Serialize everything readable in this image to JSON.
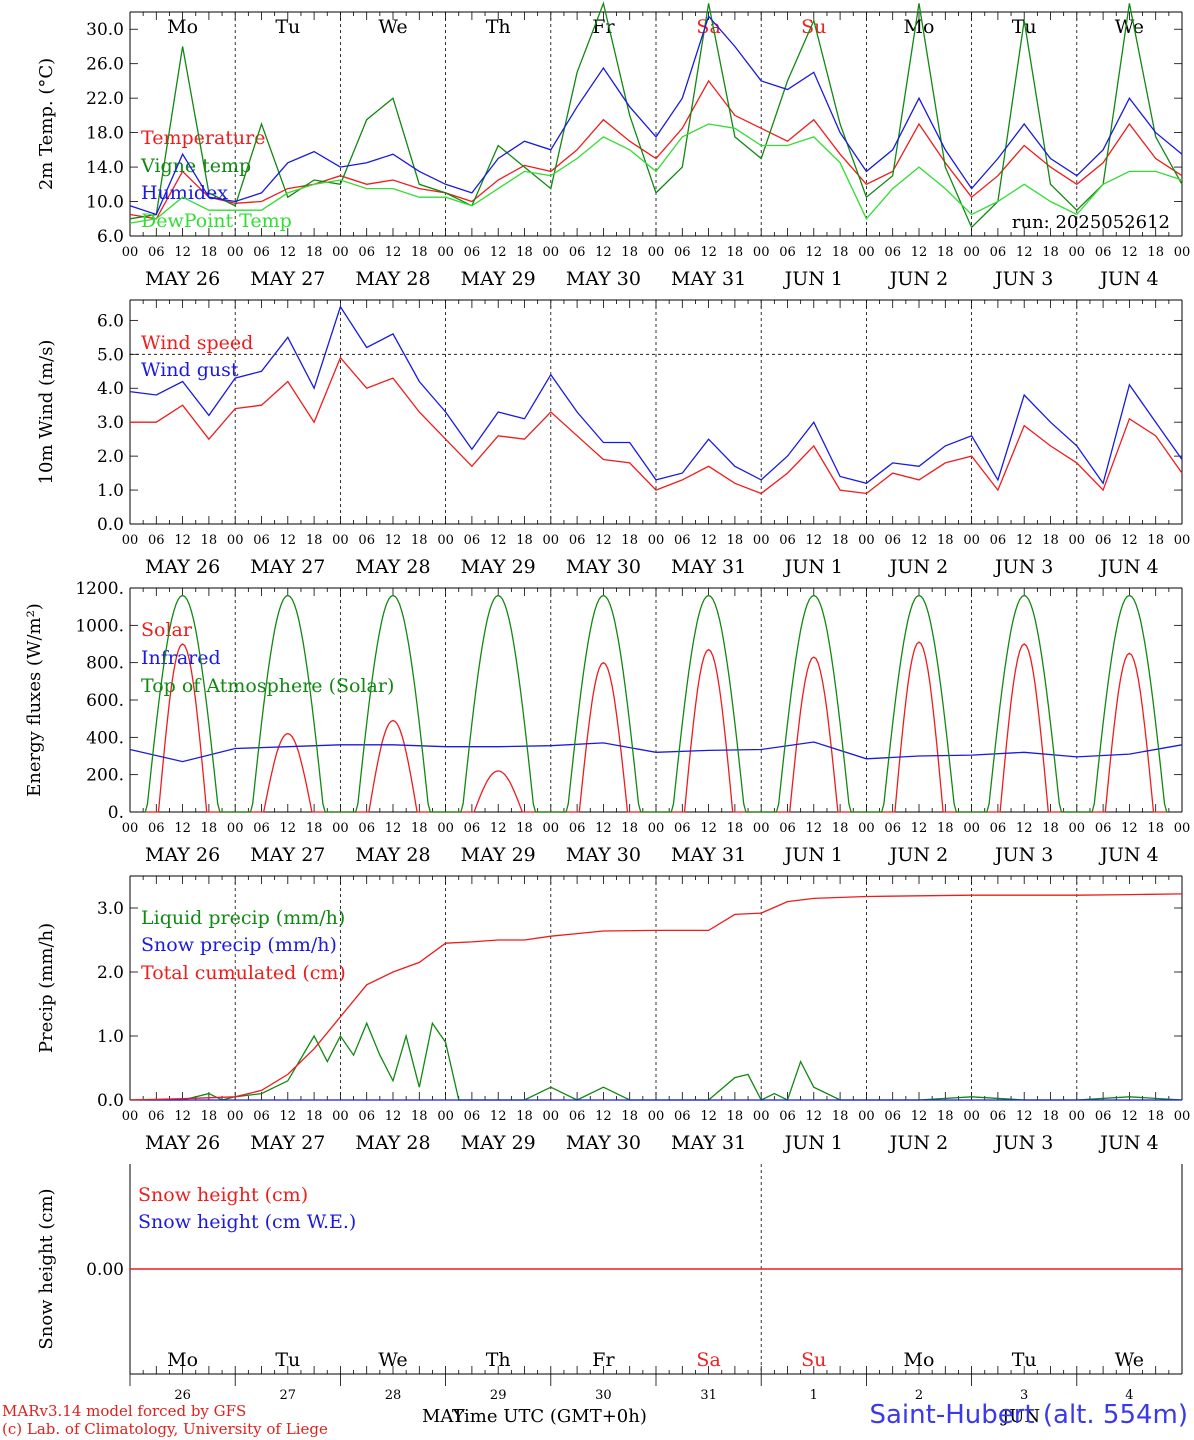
{
  "footer": {
    "model": "MARv3.14 model forced by GFS",
    "credit": "(c) Lab. of Climatology, University of Liege",
    "station": "Saint-Hubert (alt. 554m)",
    "xtitle": "Time UTC (GMT+0h)",
    "month_may": "MAY",
    "month_jun": "JUN"
  },
  "colors": {
    "red": "#ee1c1c",
    "green": "#118811",
    "blue": "#1a1ae0",
    "lightgreen": "#33dd33",
    "weekend": "#ee2222"
  },
  "x_axis": {
    "hour_ticks": [
      "00",
      "06",
      "12",
      "18"
    ],
    "end_tick": "00",
    "dates": [
      "MAY 26",
      "MAY 27",
      "MAY 28",
      "MAY 29",
      "MAY 30",
      "MAY 31",
      "JUN  1",
      "JUN  2",
      "JUN  3",
      "JUN  4"
    ],
    "weekdays": [
      "Mo",
      "Tu",
      "We",
      "Th",
      "Fr",
      "Sa",
      "Su",
      "Mo",
      "Tu",
      "We"
    ],
    "weekend_flags": [
      false,
      false,
      false,
      false,
      false,
      true,
      true,
      false,
      false,
      false
    ],
    "day_numbers": [
      "26",
      "27",
      "28",
      "29",
      "30",
      "31",
      "1",
      "2",
      "3",
      "4"
    ]
  },
  "chart_data": [
    {
      "type": "line",
      "ylabel": "2m Temp. (°C)",
      "ylim": [
        6,
        32
      ],
      "yticks": [
        "6.0",
        "10.0",
        "14.0",
        "18.0",
        "22.0",
        "26.0",
        "30.0"
      ],
      "annotation": "run: 2025052612",
      "x_unit": "hours since May 26 00 UTC",
      "series": [
        {
          "name": "Temperature",
          "color": "red",
          "x": [
            0,
            6,
            12,
            18,
            24,
            30,
            36,
            42,
            48,
            54,
            60,
            66,
            72,
            78,
            84,
            90,
            96,
            102,
            108,
            114,
            120,
            126,
            132,
            138,
            144,
            150,
            156,
            162,
            168,
            174,
            180,
            186,
            192,
            198,
            204,
            210,
            216,
            222,
            228,
            234,
            240
          ],
          "y": [
            8.5,
            8.0,
            13.5,
            10.5,
            9.8,
            10.0,
            11.5,
            12.0,
            13.0,
            12.0,
            12.5,
            11.5,
            11.0,
            10.0,
            12.5,
            14.2,
            13.5,
            16.0,
            19.5,
            17.0,
            15.0,
            18.5,
            24.0,
            20.0,
            18.5,
            17.0,
            19.5,
            15.5,
            12.0,
            13.5,
            19.0,
            14.5,
            10.5,
            13.0,
            16.5,
            14.0,
            12.0,
            14.5,
            19.0,
            15.0,
            13.0
          ]
        },
        {
          "name": "Vigne temp",
          "color": "green",
          "x": [
            0,
            6,
            12,
            18,
            24,
            30,
            36,
            42,
            48,
            54,
            60,
            66,
            72,
            78,
            84,
            90,
            96,
            102,
            108,
            114,
            120,
            126,
            132,
            138,
            144,
            150,
            156,
            162,
            168,
            174,
            180,
            186,
            192,
            198,
            204,
            210,
            216,
            222,
            228,
            234,
            240
          ],
          "y": [
            8.0,
            8.5,
            28.0,
            11.0,
            9.5,
            19.0,
            10.5,
            12.5,
            12.0,
            19.5,
            22.0,
            12.0,
            11.0,
            9.5,
            16.5,
            14.0,
            11.5,
            25.0,
            33.0,
            20.0,
            11.0,
            14.0,
            33.0,
            17.5,
            15.0,
            24.0,
            31.0,
            19.0,
            10.5,
            13.0,
            33.0,
            14.0,
            7.0,
            10.0,
            31.0,
            12.0,
            9.0,
            12.0,
            33.0,
            17.5,
            12.0
          ]
        },
        {
          "name": "Humidex",
          "color": "blue",
          "x": [
            0,
            6,
            12,
            18,
            24,
            30,
            36,
            42,
            48,
            54,
            60,
            66,
            72,
            78,
            84,
            90,
            96,
            102,
            108,
            114,
            120,
            126,
            132,
            138,
            144,
            150,
            156,
            162,
            168,
            174,
            180,
            186,
            192,
            198,
            204,
            210,
            216,
            222,
            228,
            234,
            240
          ],
          "y": [
            9.5,
            8.5,
            15.5,
            10.5,
            10.0,
            11.0,
            14.5,
            15.8,
            14.0,
            14.5,
            15.5,
            13.5,
            12.0,
            11.0,
            15.0,
            17.0,
            16.0,
            21.0,
            25.5,
            21.0,
            17.5,
            22.0,
            31.5,
            28.0,
            24.0,
            23.0,
            25.0,
            18.0,
            13.5,
            16.0,
            22.0,
            16.0,
            11.5,
            15.0,
            19.0,
            15.0,
            13.0,
            16.0,
            22.0,
            18.0,
            15.5
          ]
        },
        {
          "name": "DewPoint Temp",
          "color": "lightgreen",
          "x": [
            0,
            6,
            12,
            18,
            24,
            30,
            36,
            42,
            48,
            54,
            60,
            66,
            72,
            78,
            84,
            90,
            96,
            102,
            108,
            114,
            120,
            126,
            132,
            138,
            144,
            150,
            156,
            162,
            168,
            174,
            180,
            186,
            192,
            198,
            204,
            210,
            216,
            222,
            228,
            234,
            240
          ],
          "y": [
            7.5,
            8.0,
            10.5,
            9.0,
            9.0,
            9.0,
            11.0,
            12.0,
            12.5,
            11.5,
            11.5,
            10.5,
            10.5,
            9.5,
            11.5,
            13.5,
            13.0,
            15.0,
            17.5,
            16.0,
            13.5,
            17.5,
            19.0,
            18.5,
            16.5,
            16.5,
            17.5,
            14.5,
            8.0,
            11.5,
            14.0,
            11.5,
            8.5,
            10.0,
            12.0,
            10.0,
            8.5,
            12.0,
            13.5,
            13.5,
            12.5
          ]
        }
      ]
    },
    {
      "type": "line",
      "ylabel": "10m Wind (m/s)",
      "ylim": [
        0,
        6.6
      ],
      "yticks": [
        "0.0",
        "1.0",
        "2.0",
        "3.0",
        "4.0",
        "5.0",
        "6.0"
      ],
      "ref_line": 5.0,
      "x_unit": "hours since May 26 00 UTC",
      "series": [
        {
          "name": "Wind speed",
          "color": "red",
          "x": [
            0,
            6,
            12,
            18,
            24,
            30,
            36,
            42,
            48,
            54,
            60,
            66,
            72,
            78,
            84,
            90,
            96,
            102,
            108,
            114,
            120,
            126,
            132,
            138,
            144,
            150,
            156,
            162,
            168,
            174,
            180,
            186,
            192,
            198,
            204,
            210,
            216,
            222,
            228,
            234,
            240
          ],
          "y": [
            3.0,
            3.0,
            3.5,
            2.5,
            3.4,
            3.5,
            4.2,
            3.0,
            4.9,
            4.0,
            4.3,
            3.3,
            2.5,
            1.7,
            2.6,
            2.5,
            3.3,
            2.6,
            1.9,
            1.8,
            1.0,
            1.3,
            1.7,
            1.2,
            0.9,
            1.5,
            2.3,
            1.0,
            0.9,
            1.5,
            1.3,
            1.8,
            2.0,
            1.0,
            2.9,
            2.3,
            1.8,
            1.0,
            3.1,
            2.6,
            1.5
          ]
        },
        {
          "name": "Wind gust",
          "color": "blue",
          "x": [
            0,
            6,
            12,
            18,
            24,
            30,
            36,
            42,
            48,
            54,
            60,
            66,
            72,
            78,
            84,
            90,
            96,
            102,
            108,
            114,
            120,
            126,
            132,
            138,
            144,
            150,
            156,
            162,
            168,
            174,
            180,
            186,
            192,
            198,
            204,
            210,
            216,
            222,
            228,
            234,
            240
          ],
          "y": [
            3.9,
            3.8,
            4.2,
            3.2,
            4.3,
            4.5,
            5.5,
            4.0,
            6.4,
            5.2,
            5.6,
            4.2,
            3.3,
            2.2,
            3.3,
            3.1,
            4.4,
            3.3,
            2.4,
            2.4,
            1.3,
            1.5,
            2.5,
            1.7,
            1.3,
            2.0,
            3.0,
            1.4,
            1.2,
            1.8,
            1.7,
            2.3,
            2.6,
            1.3,
            3.8,
            3.0,
            2.3,
            1.2,
            4.1,
            3.0,
            1.9
          ]
        }
      ]
    },
    {
      "type": "line",
      "ylabel": "Energy fluxes (W/m²)",
      "ylim": [
        0,
        1200
      ],
      "yticks": [
        "0.",
        "200.",
        "400.",
        "600.",
        "800.",
        "1000.",
        "1200."
      ],
      "x_unit": "hours since May 26 00 UTC",
      "series": [
        {
          "name": "Solar",
          "color": "red",
          "daily_peak_hour": 12,
          "daily_peaks": [
            900,
            420,
            490,
            220,
            800,
            870,
            830,
            910,
            900,
            850
          ]
        },
        {
          "name": "Infrared",
          "color": "blue",
          "x": [
            0,
            12,
            24,
            36,
            48,
            60,
            72,
            84,
            96,
            108,
            120,
            132,
            144,
            156,
            168,
            180,
            192,
            204,
            216,
            228,
            240
          ],
          "y": [
            335,
            270,
            340,
            350,
            360,
            360,
            350,
            350,
            355,
            370,
            320,
            330,
            335,
            375,
            285,
            300,
            305,
            320,
            295,
            310,
            360
          ]
        },
        {
          "name": "Top of Atmosphere (Solar)",
          "color": "green",
          "daily_peak_hour": 12,
          "daily_peaks": [
            1160,
            1160,
            1160,
            1160,
            1160,
            1160,
            1160,
            1160,
            1160,
            1160
          ]
        }
      ]
    },
    {
      "type": "line",
      "ylabel": "Precip (mm/h)",
      "ylim": [
        0,
        3.5
      ],
      "yticks": [
        "0.0",
        "1.0",
        "2.0",
        "3.0"
      ],
      "x_unit": "hours since May 26 00 UTC",
      "series": [
        {
          "name": "Liquid precip (mm/h)",
          "color": "green",
          "x": [
            0,
            12,
            18,
            21,
            24,
            30,
            36,
            42,
            45,
            48,
            51,
            54,
            57,
            60,
            63,
            66,
            69,
            72,
            75,
            78,
            84,
            90,
            96,
            102,
            108,
            114,
            120,
            126,
            132,
            138,
            141,
            144,
            147,
            150,
            153,
            156,
            162,
            168,
            180,
            192,
            204,
            216,
            228,
            240
          ],
          "y": [
            0,
            0,
            0.1,
            0,
            0.05,
            0.1,
            0.3,
            1.0,
            0.6,
            1.0,
            0.7,
            1.2,
            0.7,
            0.3,
            1.0,
            0.2,
            1.2,
            0.9,
            0,
            0,
            0,
            0,
            0.2,
            0,
            0.2,
            0,
            0,
            0,
            0,
            0.35,
            0.4,
            0,
            0.1,
            0,
            0.6,
            0.2,
            0,
            0,
            0,
            0.05,
            0,
            0,
            0.05,
            0
          ]
        },
        {
          "name": "Snow precip (mm/h)",
          "color": "blue",
          "x": [
            0,
            240
          ],
          "y": [
            0,
            0
          ]
        },
        {
          "name": "Total cumulated (cm)",
          "color": "red",
          "x": [
            0,
            12,
            24,
            30,
            36,
            42,
            48,
            54,
            60,
            66,
            72,
            78,
            84,
            90,
            96,
            102,
            108,
            120,
            132,
            138,
            144,
            150,
            156,
            168,
            180,
            192,
            204,
            216,
            228,
            240
          ],
          "y": [
            0,
            0.02,
            0.05,
            0.15,
            0.4,
            0.8,
            1.3,
            1.8,
            2.0,
            2.15,
            2.45,
            2.47,
            2.5,
            2.5,
            2.56,
            2.6,
            2.64,
            2.65,
            2.65,
            2.9,
            2.92,
            3.1,
            3.15,
            3.18,
            3.19,
            3.2,
            3.2,
            3.2,
            3.21,
            3.22
          ]
        }
      ]
    },
    {
      "type": "line",
      "ylabel": "Snow height (cm)",
      "ylim": [
        -1,
        1
      ],
      "yticks": [
        "0.00"
      ],
      "x_unit": "hours since May 26 00 UTC",
      "series": [
        {
          "name": "Snow height (cm)",
          "color": "red",
          "x": [
            0,
            240
          ],
          "y": [
            0,
            0
          ]
        },
        {
          "name": "Snow height (cm W.E.)",
          "color": "blue",
          "x": [],
          "y": []
        }
      ]
    }
  ]
}
